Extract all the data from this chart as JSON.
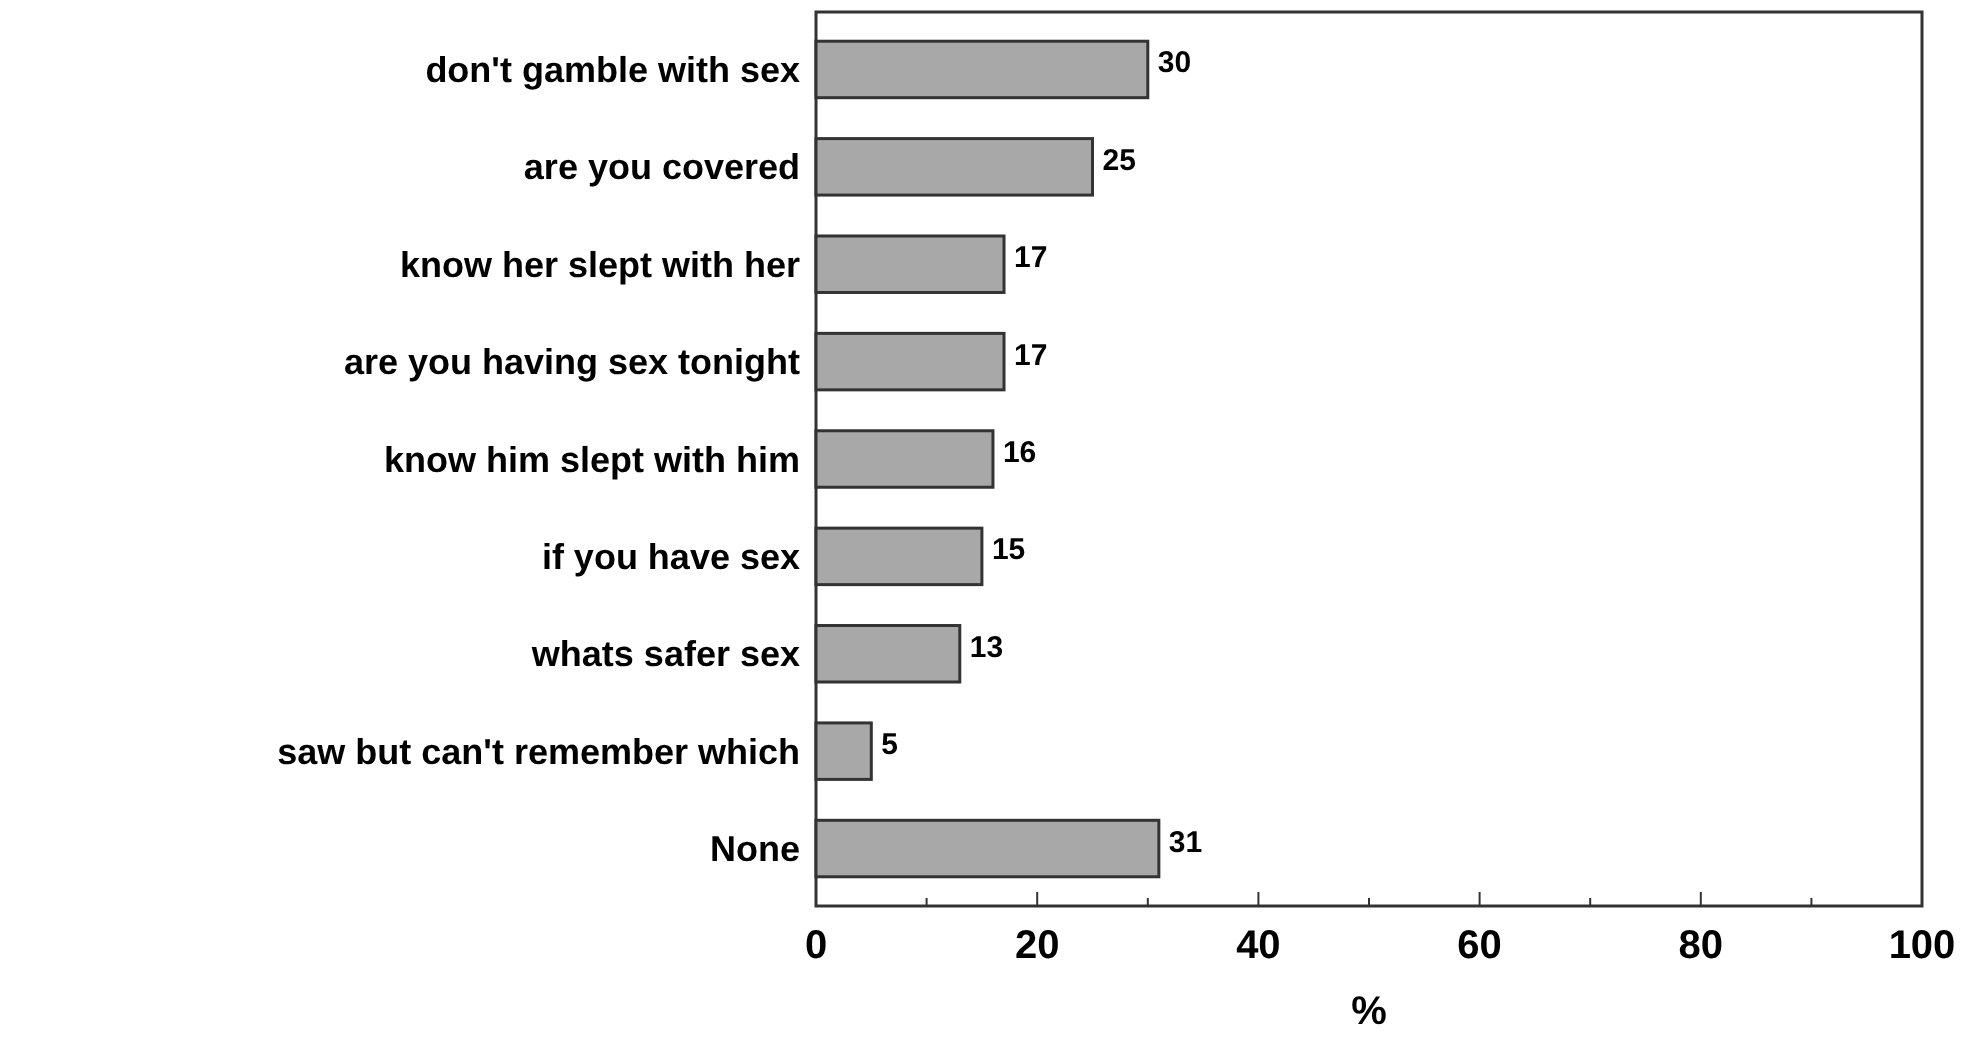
{
  "chart_data": {
    "type": "bar",
    "orientation": "horizontal",
    "xlabel": "%",
    "categories": [
      "don't gamble with sex",
      "are you covered",
      "know her slept with her",
      "are you having sex tonight",
      "know him slept with him",
      "if you have sex",
      "whats safer sex",
      "saw but can't remember which",
      "None"
    ],
    "values": [
      30,
      25,
      17,
      17,
      16,
      15,
      13,
      5,
      31
    ],
    "color": "#a8a8a8",
    "xlim": [
      0,
      100
    ],
    "xticks": [
      0,
      {
        "value": 10,
        "label": null
      },
      20,
      {
        "value": 30,
        "label": null
      },
      40,
      {
        "value": 50,
        "label": null
      },
      60,
      {
        "value": 70,
        "label": null
      },
      80,
      {
        "value": 90,
        "label": null
      },
      100
    ],
    "data_labels": true,
    "grid": false
  }
}
